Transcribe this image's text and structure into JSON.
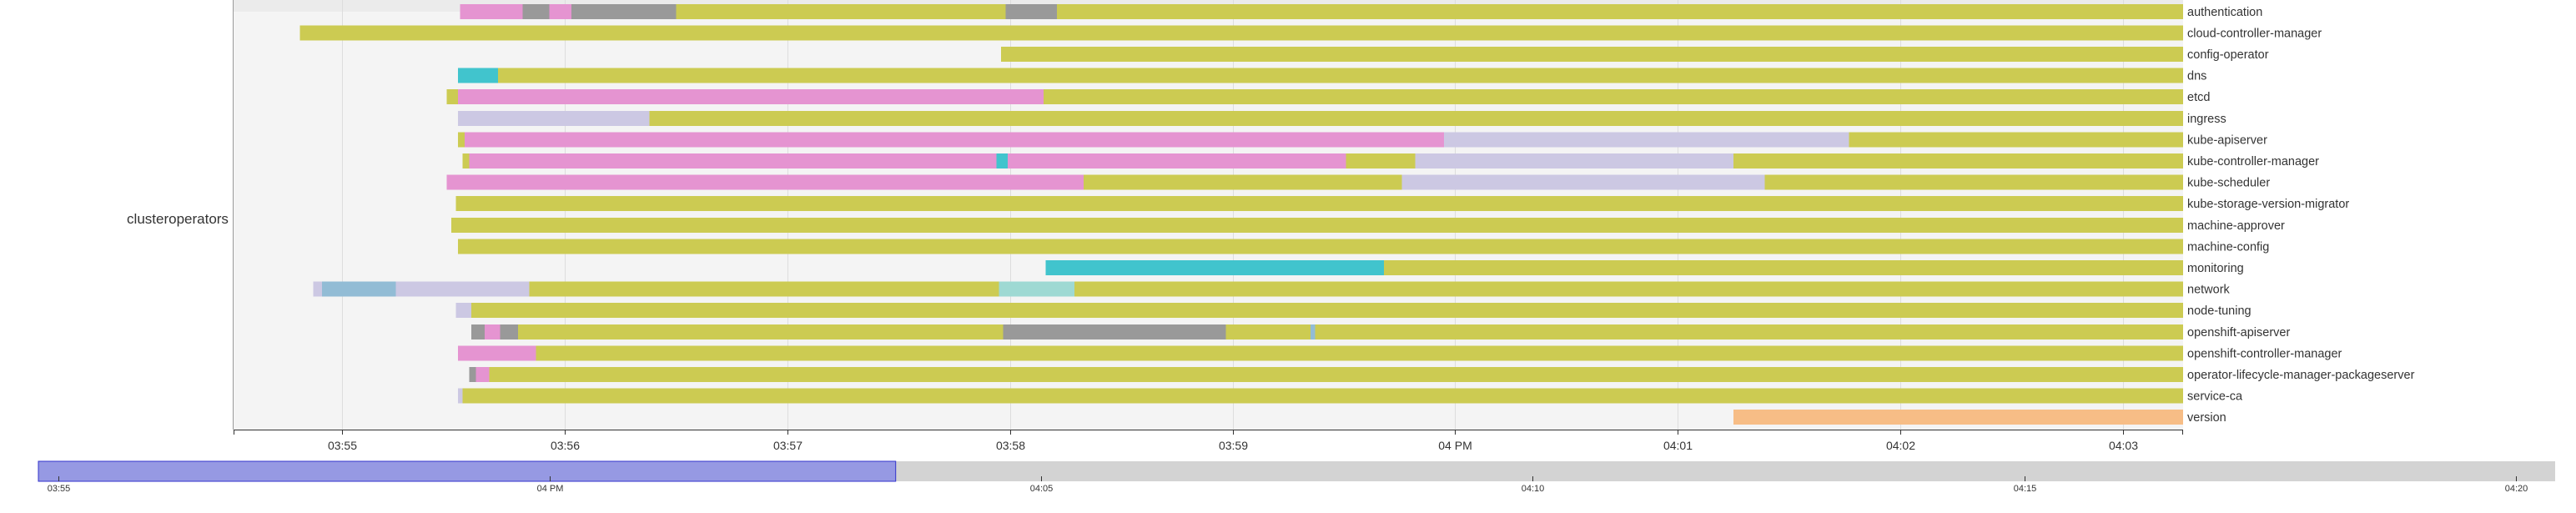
{
  "colors": {
    "available": "#cccb52",
    "progressing": "#e594d1",
    "degraded": "#999999",
    "upgradeable": "#41c4cd",
    "lavender": "#ccc8e3",
    "lightblue": "#92bcd5",
    "teal": "#9ed9d3",
    "version": "#f7bd86",
    "brush_selection": "#9699e3",
    "brush_track": "#d3d3d3"
  },
  "chart_data": {
    "type": "timeline",
    "group_label": "clusteroperators",
    "time_unit": "minutes after 03:54",
    "x_range": [
      0.512,
      9.27
    ],
    "x_ticks": [
      {
        "t": 1,
        "label": "03:55"
      },
      {
        "t": 2,
        "label": "03:56"
      },
      {
        "t": 3,
        "label": "03:57"
      },
      {
        "t": 4,
        "label": "03:58"
      },
      {
        "t": 5,
        "label": "03:59"
      },
      {
        "t": 6,
        "label": "04 PM"
      },
      {
        "t": 7,
        "label": "04:01"
      },
      {
        "t": 8,
        "label": "04:02"
      },
      {
        "t": 9,
        "label": "04:03"
      }
    ],
    "rows": [
      {
        "name": "authentication",
        "segments": [
          {
            "s": 1.53,
            "e": 1.81,
            "c": "progressing"
          },
          {
            "s": 1.81,
            "e": 1.93,
            "c": "degraded"
          },
          {
            "s": 1.93,
            "e": 2.03,
            "c": "progressing"
          },
          {
            "s": 2.03,
            "e": 2.5,
            "c": "degraded"
          },
          {
            "s": 2.5,
            "e": 3.98,
            "c": "available"
          },
          {
            "s": 3.98,
            "e": 4.21,
            "c": "degraded"
          },
          {
            "s": 4.21,
            "e": 9.27,
            "c": "available"
          }
        ]
      },
      {
        "name": "cloud-controller-manager",
        "segments": [
          {
            "s": 0.81,
            "e": 9.27,
            "c": "available"
          }
        ]
      },
      {
        "name": "config-operator",
        "segments": [
          {
            "s": 3.96,
            "e": 9.27,
            "c": "available"
          }
        ]
      },
      {
        "name": "dns",
        "segments": [
          {
            "s": 1.52,
            "e": 1.7,
            "c": "upgradeable"
          },
          {
            "s": 1.7,
            "e": 9.27,
            "c": "available"
          }
        ]
      },
      {
        "name": "etcd",
        "segments": [
          {
            "s": 1.47,
            "e": 1.52,
            "c": "available"
          },
          {
            "s": 1.52,
            "e": 4.15,
            "c": "progressing"
          },
          {
            "s": 4.15,
            "e": 9.27,
            "c": "available"
          }
        ]
      },
      {
        "name": "ingress",
        "segments": [
          {
            "s": 1.52,
            "e": 2.38,
            "c": "lavender"
          },
          {
            "s": 2.38,
            "e": 9.27,
            "c": "available"
          }
        ]
      },
      {
        "name": "kube-apiserver",
        "segments": [
          {
            "s": 1.52,
            "e": 1.55,
            "c": "available"
          },
          {
            "s": 1.55,
            "e": 5.95,
            "c": "progressing"
          },
          {
            "s": 5.95,
            "e": 7.77,
            "c": "lavender"
          },
          {
            "s": 7.77,
            "e": 9.27,
            "c": "available"
          }
        ]
      },
      {
        "name": "kube-controller-manager",
        "segments": [
          {
            "s": 1.54,
            "e": 1.57,
            "c": "available"
          },
          {
            "s": 1.57,
            "e": 3.94,
            "c": "progressing"
          },
          {
            "s": 3.94,
            "e": 3.99,
            "c": "upgradeable"
          },
          {
            "s": 3.99,
            "e": 5.51,
            "c": "progressing"
          },
          {
            "s": 5.51,
            "e": 5.82,
            "c": "available"
          },
          {
            "s": 5.82,
            "e": 7.25,
            "c": "lavender"
          },
          {
            "s": 7.25,
            "e": 9.27,
            "c": "available"
          }
        ]
      },
      {
        "name": "kube-scheduler",
        "segments": [
          {
            "s": 1.47,
            "e": 4.33,
            "c": "progressing"
          },
          {
            "s": 4.33,
            "e": 5.76,
            "c": "available"
          },
          {
            "s": 5.76,
            "e": 7.39,
            "c": "lavender"
          },
          {
            "s": 7.39,
            "e": 9.27,
            "c": "available"
          }
        ]
      },
      {
        "name": "kube-storage-version-migrator",
        "segments": [
          {
            "s": 1.51,
            "e": 9.27,
            "c": "available"
          }
        ]
      },
      {
        "name": "machine-approver",
        "segments": [
          {
            "s": 1.49,
            "e": 9.27,
            "c": "available"
          }
        ]
      },
      {
        "name": "machine-config",
        "segments": [
          {
            "s": 1.52,
            "e": 9.27,
            "c": "available"
          }
        ]
      },
      {
        "name": "monitoring",
        "segments": [
          {
            "s": 4.16,
            "e": 5.68,
            "c": "upgradeable"
          },
          {
            "s": 5.68,
            "e": 9.27,
            "c": "available"
          }
        ]
      },
      {
        "name": "network",
        "segments": [
          {
            "s": 0.87,
            "e": 0.91,
            "c": "lavender"
          },
          {
            "s": 0.91,
            "e": 1.24,
            "c": "lightblue"
          },
          {
            "s": 1.24,
            "e": 1.84,
            "c": "lavender"
          },
          {
            "s": 1.84,
            "e": 3.95,
            "c": "available"
          },
          {
            "s": 3.95,
            "e": 4.29,
            "c": "teal"
          },
          {
            "s": 4.29,
            "e": 9.27,
            "c": "available"
          }
        ]
      },
      {
        "name": "node-tuning",
        "segments": [
          {
            "s": 1.51,
            "e": 1.58,
            "c": "lavender"
          },
          {
            "s": 1.58,
            "e": 9.27,
            "c": "available"
          }
        ]
      },
      {
        "name": "openshift-apiserver",
        "segments": [
          {
            "s": 1.58,
            "e": 1.64,
            "c": "degraded"
          },
          {
            "s": 1.64,
            "e": 1.71,
            "c": "progressing"
          },
          {
            "s": 1.71,
            "e": 1.79,
            "c": "degraded"
          },
          {
            "s": 1.79,
            "e": 3.97,
            "c": "available"
          },
          {
            "s": 3.97,
            "e": 4.97,
            "c": "degraded"
          },
          {
            "s": 4.97,
            "e": 5.35,
            "c": "available"
          },
          {
            "s": 5.35,
            "e": 5.37,
            "c": "lightblue"
          },
          {
            "s": 5.37,
            "e": 9.27,
            "c": "available"
          }
        ]
      },
      {
        "name": "openshift-controller-manager",
        "segments": [
          {
            "s": 1.52,
            "e": 1.87,
            "c": "progressing"
          },
          {
            "s": 1.87,
            "e": 9.27,
            "c": "available"
          }
        ]
      },
      {
        "name": "operator-lifecycle-manager-packageserver",
        "segments": [
          {
            "s": 1.57,
            "e": 1.6,
            "c": "degraded"
          },
          {
            "s": 1.6,
            "e": 1.66,
            "c": "progressing"
          },
          {
            "s": 1.66,
            "e": 9.27,
            "c": "available"
          }
        ]
      },
      {
        "name": "service-ca",
        "segments": [
          {
            "s": 1.52,
            "e": 1.54,
            "c": "lavender"
          },
          {
            "s": 1.54,
            "e": 9.27,
            "c": "available"
          }
        ]
      },
      {
        "name": "version",
        "segments": [
          {
            "s": 7.25,
            "e": 9.27,
            "c": "version"
          }
        ]
      }
    ],
    "brush": {
      "x_range": [
        0.8,
        26.4
      ],
      "selection": [
        0.8,
        9.52
      ],
      "ticks": [
        {
          "t": 1,
          "label": "03:55"
        },
        {
          "t": 6,
          "label": "04 PM"
        },
        {
          "t": 11,
          "label": "04:05"
        },
        {
          "t": 16,
          "label": "04:10"
        },
        {
          "t": 21,
          "label": "04:15"
        },
        {
          "t": 26,
          "label": "04:20"
        }
      ]
    }
  }
}
